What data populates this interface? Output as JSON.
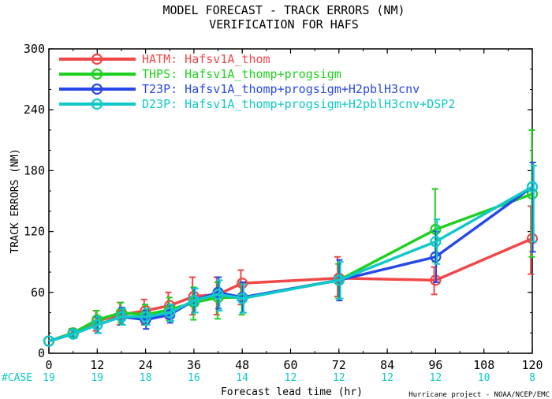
{
  "chart_data": {
    "type": "line",
    "title": "MODEL FORECAST - TRACK ERRORS (NM)",
    "subtitle": "VERIFICATION FOR HAFS",
    "xlabel": "Forecast lead time (hr)",
    "ylabel": "TRACK ERRORS (NM)",
    "xlim": [
      0,
      120
    ],
    "ylim": [
      0,
      300
    ],
    "xticks": [
      "0",
      "12",
      "24",
      "36",
      "48",
      "60",
      "72",
      "84",
      "96",
      "108",
      "120"
    ],
    "xtick_values": [
      0,
      12,
      24,
      36,
      48,
      60,
      72,
      84,
      96,
      108,
      120
    ],
    "yticks": [
      "0",
      "60",
      "120",
      "180",
      "240",
      "300"
    ],
    "ytick_values": [
      0,
      60,
      120,
      180,
      240,
      300
    ],
    "case_label": "#CASE",
    "case_x": [
      0,
      12,
      24,
      36,
      48,
      60,
      72,
      84,
      96,
      108,
      120
    ],
    "case_counts": [
      "19",
      "19",
      "18",
      "16",
      "14",
      "12",
      "12",
      "12",
      "12",
      "10",
      "8"
    ],
    "credit": "Hurricane project - NOAA/NCEP/EMC",
    "legend_position": "top-left",
    "series": [
      {
        "name": "HATM:",
        "label": "Hafsv1A_thom",
        "color": "#f04848",
        "x": [
          0,
          6,
          12,
          18,
          24,
          30,
          36,
          42,
          48,
          72,
          96,
          120
        ],
        "y": [
          12,
          20,
          32,
          38,
          42,
          47,
          56,
          58,
          69,
          74,
          72,
          113
        ],
        "err_lo": [
          12,
          16,
          22,
          28,
          28,
          34,
          38,
          38,
          48,
          56,
          58,
          78
        ],
        "err_hi": [
          12,
          24,
          42,
          50,
          53,
          60,
          75,
          75,
          82,
          95,
          85,
          145
        ]
      },
      {
        "name": "THPS:",
        "label": "Hafsv1A_thomp+progsigm",
        "color": "#20d020",
        "x": [
          0,
          6,
          12,
          18,
          24,
          30,
          36,
          42,
          48,
          72,
          96,
          120
        ],
        "y": [
          12,
          20,
          33,
          40,
          38,
          43,
          50,
          55,
          55,
          72,
          122,
          157
        ],
        "err_lo": [
          12,
          16,
          24,
          30,
          28,
          32,
          33,
          34,
          38,
          54,
          90,
          95
        ],
        "err_hi": [
          12,
          24,
          42,
          50,
          48,
          55,
          65,
          70,
          70,
          88,
          162,
          220
        ]
      },
      {
        "name": "T23P:",
        "label": "Hafsv1A_thomp+progsigm+H2pblH3cnv",
        "color": "#2848e8",
        "x": [
          0,
          6,
          12,
          18,
          24,
          30,
          36,
          42,
          48,
          72,
          96,
          120
        ],
        "y": [
          12,
          19,
          28,
          36,
          33,
          38,
          52,
          60,
          55,
          72,
          95,
          164
        ],
        "err_lo": [
          12,
          15,
          20,
          28,
          24,
          30,
          40,
          44,
          40,
          52,
          70,
          100
        ],
        "err_hi": [
          12,
          23,
          36,
          45,
          42,
          48,
          64,
          75,
          70,
          92,
          120,
          188
        ]
      },
      {
        "name": "D23P:",
        "label": "Hafsv1A_thomp+progsigm+H2pblH3cnv+DSP2",
        "color": "#12c8c8",
        "x": [
          0,
          6,
          12,
          18,
          24,
          30,
          36,
          42,
          48,
          72,
          96,
          120
        ],
        "y": [
          12,
          19,
          28,
          36,
          36,
          40,
          52,
          58,
          54,
          72,
          110,
          164
        ],
        "err_lo": [
          12,
          15,
          20,
          28,
          28,
          32,
          40,
          42,
          40,
          54,
          88,
          110
        ],
        "err_hi": [
          12,
          23,
          36,
          44,
          44,
          48,
          64,
          72,
          68,
          90,
          132,
          185
        ]
      }
    ]
  }
}
